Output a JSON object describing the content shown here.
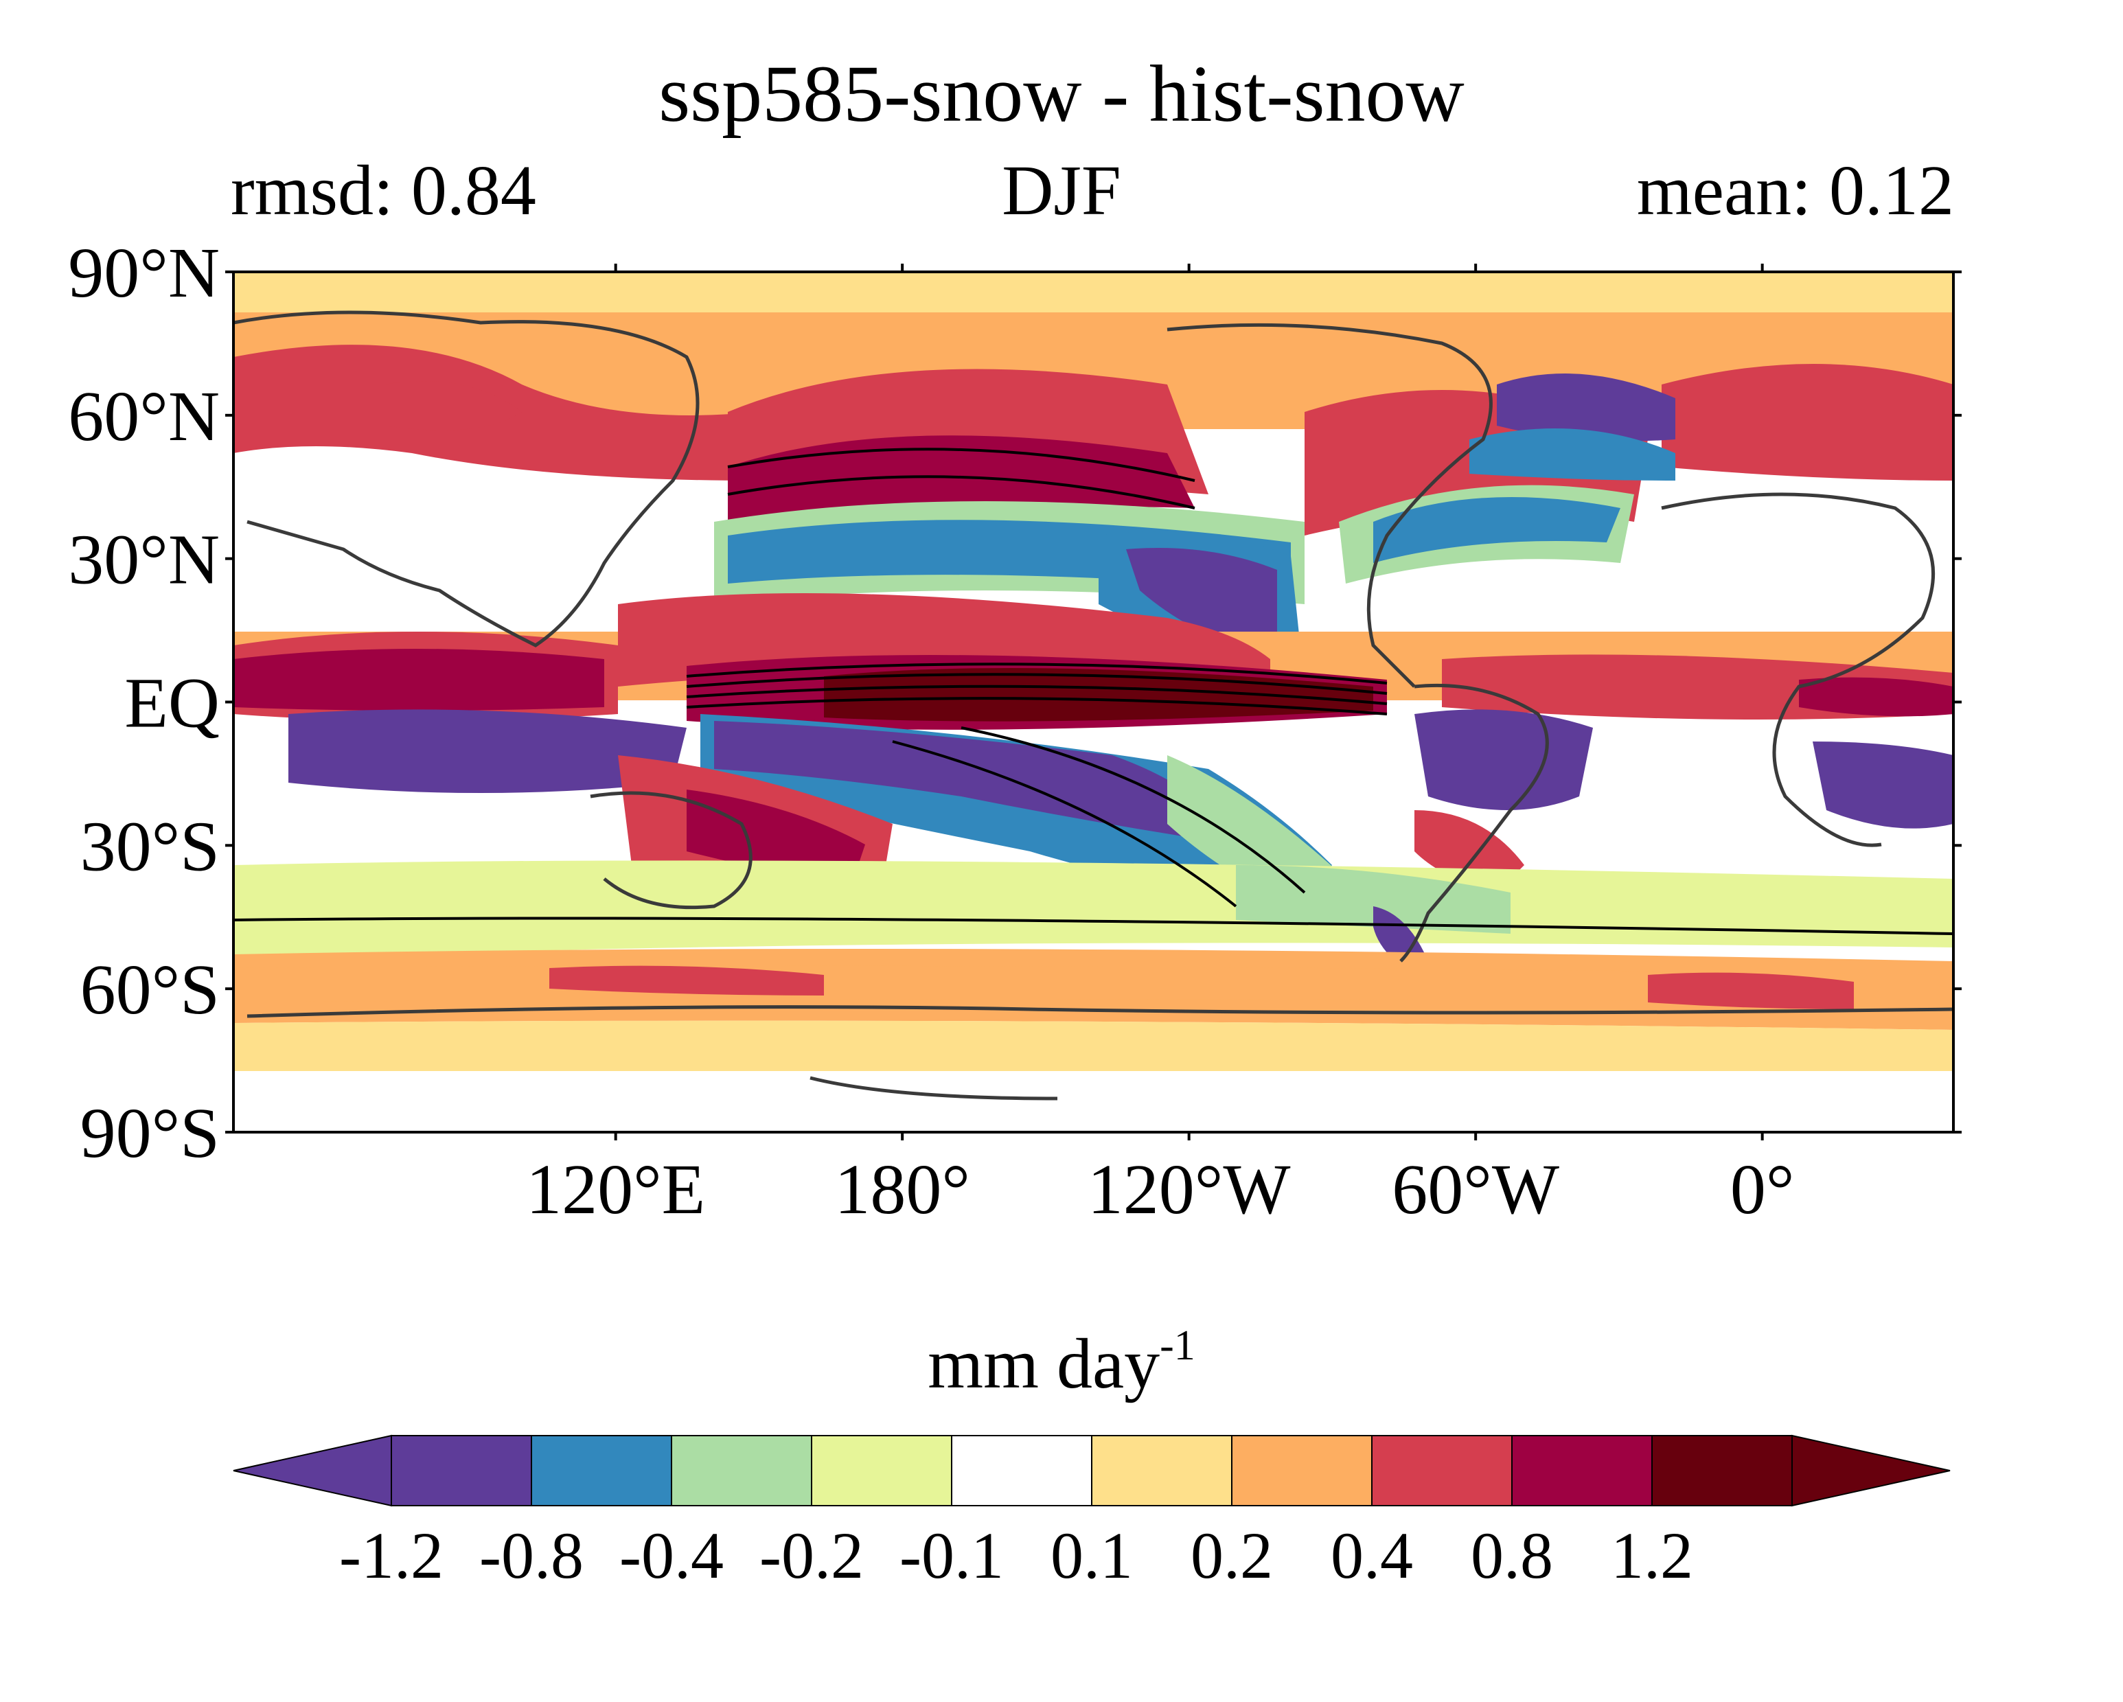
{
  "header": {
    "title": "ssp585-snow - hist-snow",
    "left_stat": "rmsd: 0.84",
    "season": "DJF",
    "right_stat": "mean: 0.12"
  },
  "map": {
    "lat_ticks": [
      "90°N",
      "60°N",
      "30°N",
      "EQ",
      "30°S",
      "60°S",
      "90°S"
    ],
    "lon_ticks": [
      "120°E",
      "180°",
      "120°W",
      "60°W",
      "0°"
    ],
    "lon_tick_values": [
      120,
      180,
      240,
      300,
      360
    ],
    "lat_tick_values": [
      90,
      60,
      30,
      0,
      -30,
      -60,
      -90
    ],
    "lon_range": [
      40,
      400
    ],
    "lat_range": [
      -90,
      90
    ]
  },
  "colorbar": {
    "units": "mm day",
    "units_exp": "-1",
    "levels": [
      "-1.2",
      "-0.8",
      "-0.4",
      "-0.2",
      "-0.1",
      "0.1",
      "0.2",
      "0.4",
      "0.8",
      "1.2"
    ],
    "colors": [
      "#5e3c99",
      "#3288bd",
      "#abdda4",
      "#e6f598",
      "#ffffff",
      "#fee08b",
      "#fdae61",
      "#d53e4f",
      "#9e0142",
      "#67000d"
    ],
    "under_color": "#5e3c99",
    "over_color": "#67000d"
  }
}
